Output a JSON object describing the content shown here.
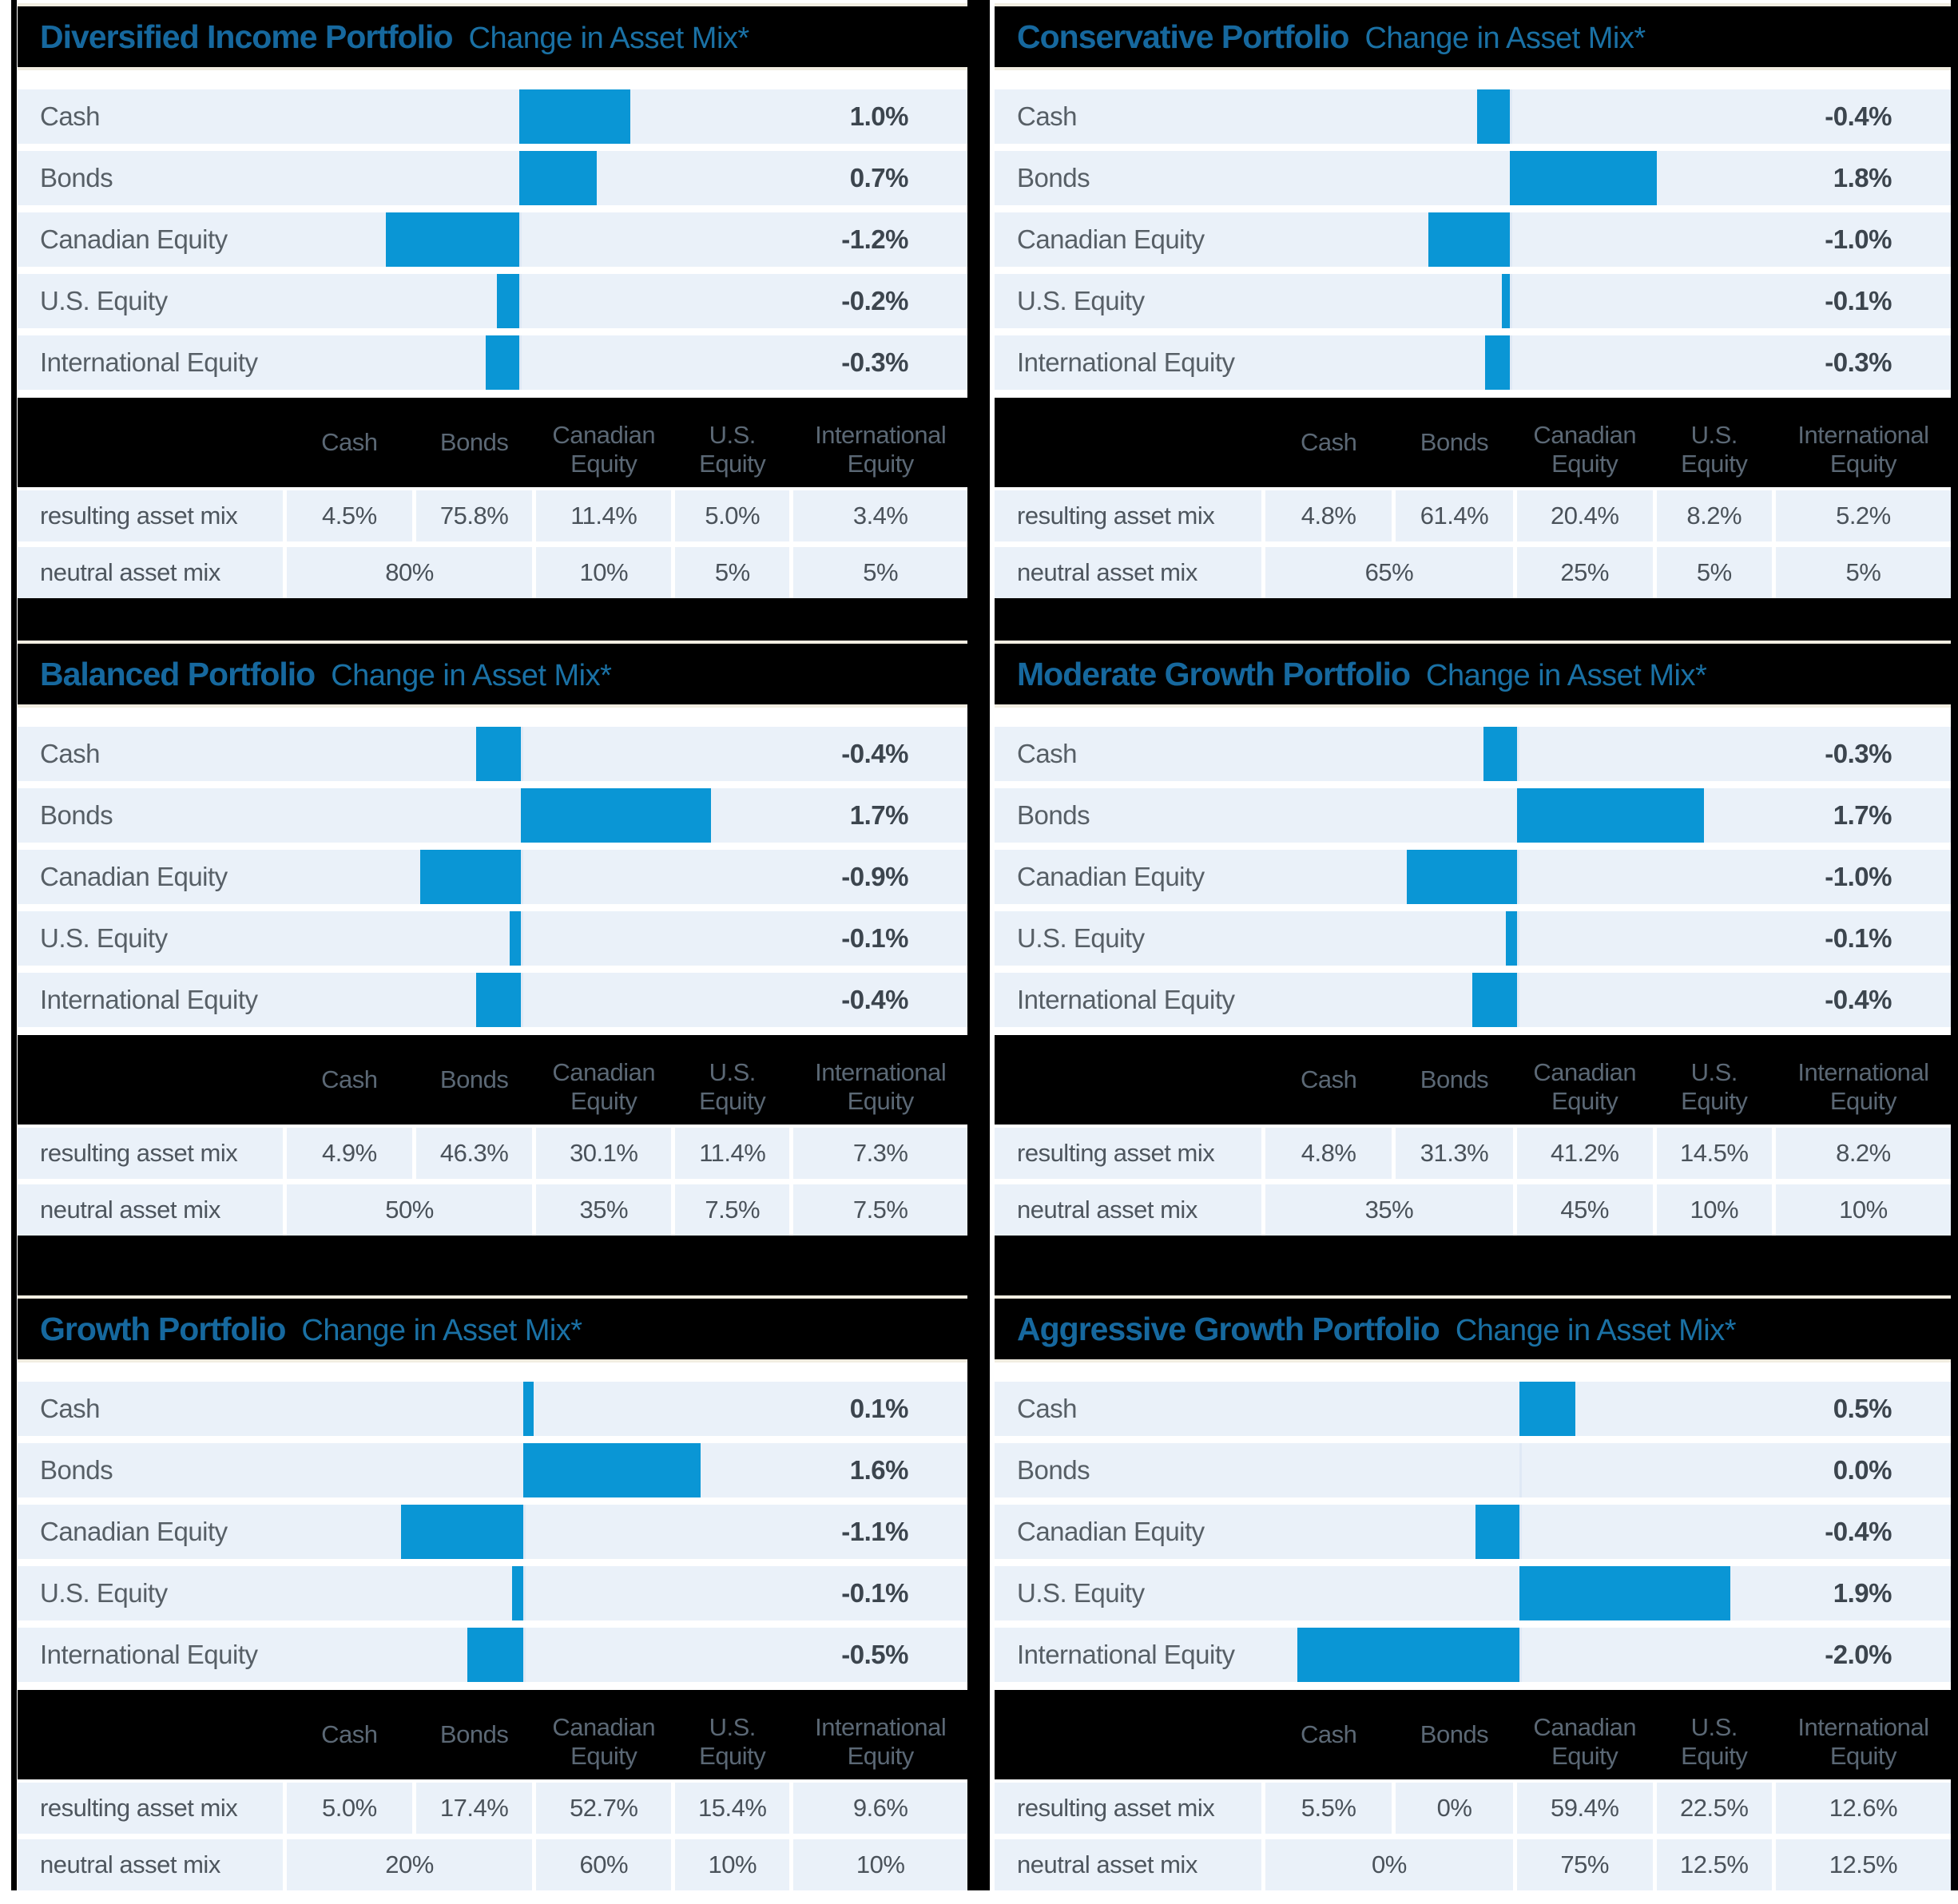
{
  "colors": {
    "bar_blue": "#0a96d5",
    "title_blue": "#16689e",
    "row_background": "#eaf1f9",
    "header_background": "#000000",
    "separator_cream": "#f1ede1"
  },
  "chart_data": [
    {
      "type": "bar",
      "orientation": "horizontal",
      "title": "Diversified Income Portfolio",
      "subtitle": "Change in Asset Mix*",
      "x_axis": {
        "unit": "%",
        "zero_baseline": true
      },
      "categories": [
        "Cash",
        "Bonds",
        "Canadian Equity",
        "U.S. Equity",
        "International Equity"
      ],
      "values": [
        1.0,
        0.7,
        -1.2,
        -0.2,
        -0.3
      ],
      "value_labels": [
        "1.0%",
        "0.7%",
        "-1.2%",
        "-0.2%",
        "-0.3%"
      ],
      "table": {
        "headers": [
          "Cash",
          "Bonds",
          "Canadian Equity",
          "U.S. Equity",
          "International Equity"
        ],
        "resulting": {
          "label": "resulting asset mix",
          "values": [
            "4.5%",
            "75.8%",
            "11.4%",
            "5.0%",
            "3.4%"
          ]
        },
        "neutral": {
          "label": "neutral asset mix",
          "cash_bonds": "80%",
          "values": [
            "10%",
            "5%",
            "5%"
          ]
        }
      }
    },
    {
      "type": "bar",
      "orientation": "horizontal",
      "title": "Conservative Portfolio",
      "subtitle": "Change in Asset Mix*",
      "x_axis": {
        "unit": "%",
        "zero_baseline": true
      },
      "categories": [
        "Cash",
        "Bonds",
        "Canadian Equity",
        "U.S. Equity",
        "International Equity"
      ],
      "values": [
        -0.4,
        1.8,
        -1.0,
        -0.1,
        -0.3
      ],
      "value_labels": [
        "-0.4%",
        "1.8%",
        "-1.0%",
        "-0.1%",
        "-0.3%"
      ],
      "table": {
        "headers": [
          "Cash",
          "Bonds",
          "Canadian Equity",
          "U.S. Equity",
          "International Equity"
        ],
        "resulting": {
          "label": "resulting asset mix",
          "values": [
            "4.8%",
            "61.4%",
            "20.4%",
            "8.2%",
            "5.2%"
          ]
        },
        "neutral": {
          "label": "neutral asset mix",
          "cash_bonds": "65%",
          "values": [
            "25%",
            "5%",
            "5%"
          ]
        }
      }
    },
    {
      "type": "bar",
      "orientation": "horizontal",
      "title": "Balanced Portfolio",
      "subtitle": "Change in Asset Mix*",
      "x_axis": {
        "unit": "%",
        "zero_baseline": true
      },
      "categories": [
        "Cash",
        "Bonds",
        "Canadian Equity",
        "U.S. Equity",
        "International Equity"
      ],
      "values": [
        -0.4,
        1.7,
        -0.9,
        -0.1,
        -0.4
      ],
      "value_labels": [
        "-0.4%",
        "1.7%",
        "-0.9%",
        "-0.1%",
        "-0.4%"
      ],
      "table": {
        "headers": [
          "Cash",
          "Bonds",
          "Canadian Equity",
          "U.S. Equity",
          "International Equity"
        ],
        "resulting": {
          "label": "resulting asset mix",
          "values": [
            "4.9%",
            "46.3%",
            "30.1%",
            "11.4%",
            "7.3%"
          ]
        },
        "neutral": {
          "label": "neutral asset mix",
          "cash_bonds": "50%",
          "values": [
            "35%",
            "7.5%",
            "7.5%"
          ]
        }
      }
    },
    {
      "type": "bar",
      "orientation": "horizontal",
      "title": "Moderate Growth Portfolio",
      "subtitle": "Change in Asset Mix*",
      "x_axis": {
        "unit": "%",
        "zero_baseline": true
      },
      "categories": [
        "Cash",
        "Bonds",
        "Canadian Equity",
        "U.S. Equity",
        "International Equity"
      ],
      "values": [
        -0.3,
        1.7,
        -1.0,
        -0.1,
        -0.4
      ],
      "value_labels": [
        "-0.3%",
        "1.7%",
        "-1.0%",
        "-0.1%",
        "-0.4%"
      ],
      "table": {
        "headers": [
          "Cash",
          "Bonds",
          "Canadian Equity",
          "U.S. Equity",
          "International Equity"
        ],
        "resulting": {
          "label": "resulting asset mix",
          "values": [
            "4.8%",
            "31.3%",
            "41.2%",
            "14.5%",
            "8.2%"
          ]
        },
        "neutral": {
          "label": "neutral asset mix",
          "cash_bonds": "35%",
          "values": [
            "45%",
            "10%",
            "10%"
          ]
        }
      }
    },
    {
      "type": "bar",
      "orientation": "horizontal",
      "title": "Growth Portfolio",
      "subtitle": "Change in Asset Mix*",
      "x_axis": {
        "unit": "%",
        "zero_baseline": true
      },
      "categories": [
        "Cash",
        "Bonds",
        "Canadian Equity",
        "U.S. Equity",
        "International Equity"
      ],
      "values": [
        0.1,
        1.6,
        -1.1,
        -0.1,
        -0.5
      ],
      "value_labels": [
        "0.1%",
        "1.6%",
        "-1.1%",
        "-0.1%",
        "-0.5%"
      ],
      "table": {
        "headers": [
          "Cash",
          "Bonds",
          "Canadian Equity",
          "U.S. Equity",
          "International Equity"
        ],
        "resulting": {
          "label": "resulting asset mix",
          "values": [
            "5.0%",
            "17.4%",
            "52.7%",
            "15.4%",
            "9.6%"
          ]
        },
        "neutral": {
          "label": "neutral asset mix",
          "cash_bonds": "20%",
          "values": [
            "60%",
            "10%",
            "10%"
          ]
        }
      }
    },
    {
      "type": "bar",
      "orientation": "horizontal",
      "title": "Aggressive Growth Portfolio",
      "subtitle": "Change in Asset Mix*",
      "x_axis": {
        "unit": "%",
        "zero_baseline": true
      },
      "categories": [
        "Cash",
        "Bonds",
        "Canadian Equity",
        "U.S. Equity",
        "International Equity"
      ],
      "values": [
        0.5,
        0.0,
        -0.4,
        1.9,
        -2.0
      ],
      "value_labels": [
        "0.5%",
        "0.0%",
        "-0.4%",
        "1.9%",
        "-2.0%"
      ],
      "table": {
        "headers": [
          "Cash",
          "Bonds",
          "Canadian Equity",
          "U.S. Equity",
          "International Equity"
        ],
        "resulting": {
          "label": "resulting asset mix",
          "values": [
            "5.5%",
            "0%",
            "59.4%",
            "22.5%",
            "12.6%"
          ]
        },
        "neutral": {
          "label": "neutral asset mix",
          "cash_bonds": "0%",
          "values": [
            "75%",
            "12.5%",
            "12.5%"
          ]
        }
      }
    }
  ]
}
